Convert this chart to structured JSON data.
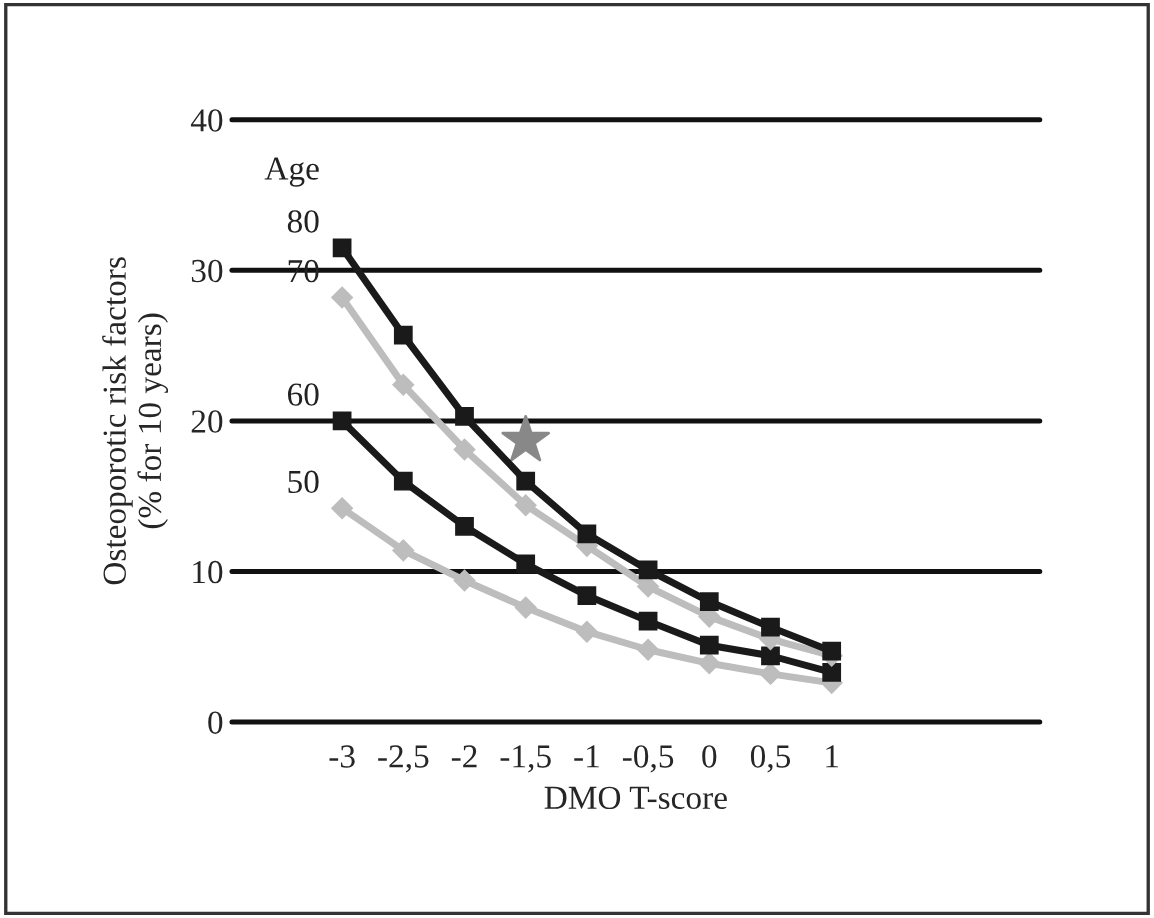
{
  "chart_data": {
    "type": "line",
    "xlabel": "DMO T-score",
    "ylabel": "Osteoporotic risk factors\n(% for 10 years)",
    "annotations": [
      "Age"
    ],
    "x": [
      -3,
      -2.5,
      -2,
      -1.5,
      -1,
      -0.5,
      0,
      0.5,
      1
    ],
    "xlim": [
      -3.9,
      2.7
    ],
    "xticks": [
      {
        "value": -3,
        "label": "-3"
      },
      {
        "value": -2.5,
        "label": "-2,5"
      },
      {
        "value": -2,
        "label": "-2"
      },
      {
        "value": -1.5,
        "label": "-1,5"
      },
      {
        "value": -1,
        "label": "-1"
      },
      {
        "value": -0.5,
        "label": "-0,5"
      },
      {
        "value": 0,
        "label": "0"
      },
      {
        "value": 0.5,
        "label": "0,5"
      },
      {
        "value": 1,
        "label": "1"
      }
    ],
    "ylim": [
      0,
      40
    ],
    "yticks": [
      0,
      10,
      20,
      30,
      40
    ],
    "grid": "y",
    "legend": false,
    "series": [
      {
        "name": "80",
        "color": "#1a1a1a",
        "marker": "square",
        "values": [
          31.5,
          25.7,
          20.3,
          16.0,
          12.5,
          10.1,
          8.0,
          6.3,
          4.7
        ]
      },
      {
        "name": "70",
        "color": "#bdbdbd",
        "marker": "diamond",
        "values": [
          28.2,
          22.4,
          18.1,
          14.4,
          11.7,
          9.0,
          7.0,
          5.5,
          4.4
        ]
      },
      {
        "name": "60",
        "color": "#1a1a1a",
        "marker": "square",
        "values": [
          20.0,
          16.0,
          13.0,
          10.5,
          8.4,
          6.7,
          5.1,
          4.4,
          3.3
        ]
      },
      {
        "name": "50",
        "color": "#bdbdbd",
        "marker": "diamond",
        "values": [
          14.2,
          11.4,
          9.4,
          7.6,
          6.0,
          4.8,
          3.9,
          3.2,
          2.6
        ]
      }
    ]
  }
}
